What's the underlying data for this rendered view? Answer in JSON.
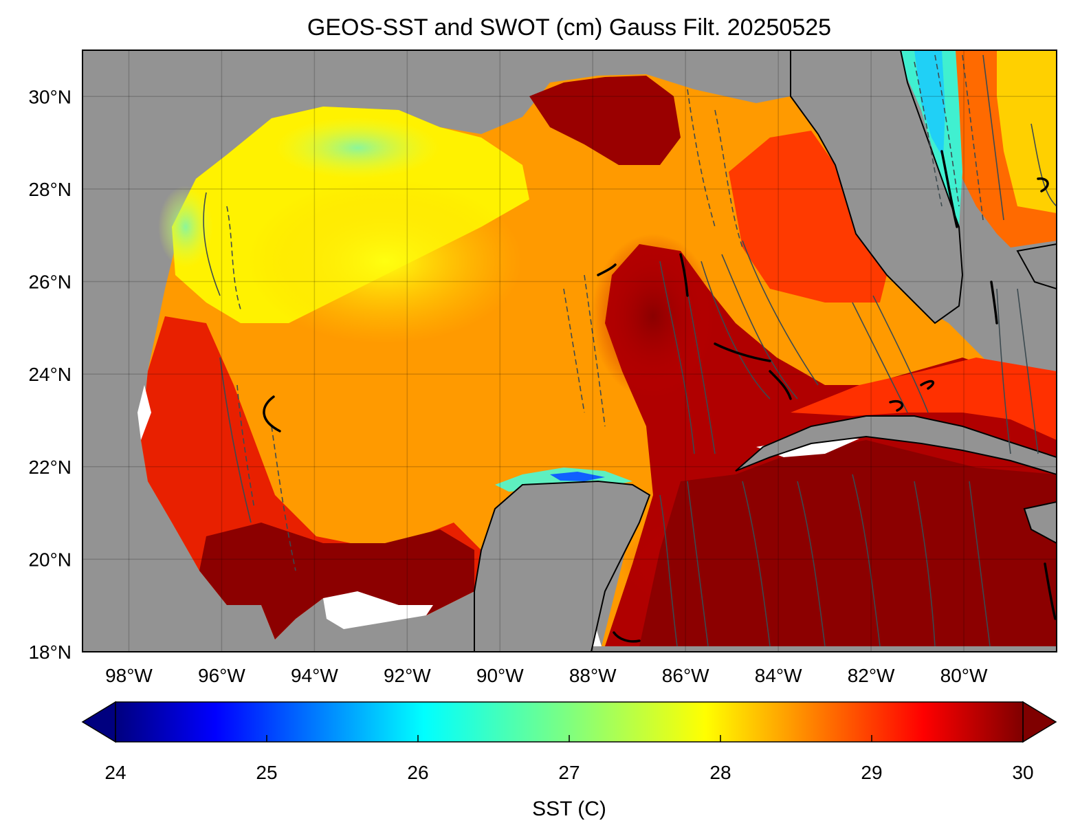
{
  "title": "GEOS-SST  and SWOT (cm) Gauss Filt. 20250525",
  "map": {
    "lon_range": [
      -99,
      -78
    ],
    "lat_range": [
      18,
      31
    ],
    "land_color": "#939393",
    "no_data_color": "#ffffff",
    "lat_ticks": [
      {
        "value": 30,
        "label": "30°N"
      },
      {
        "value": 28,
        "label": "28°N"
      },
      {
        "value": 26,
        "label": "26°N"
      },
      {
        "value": 24,
        "label": "24°N"
      },
      {
        "value": 22,
        "label": "22°N"
      },
      {
        "value": 20,
        "label": "20°N"
      },
      {
        "value": 18,
        "label": "18°N"
      }
    ],
    "lon_ticks": [
      {
        "value": -98,
        "label": "98°W"
      },
      {
        "value": -96,
        "label": "96°W"
      },
      {
        "value": -94,
        "label": "94°W"
      },
      {
        "value": -92,
        "label": "92°W"
      },
      {
        "value": -90,
        "label": "90°W"
      },
      {
        "value": -88,
        "label": "88°W"
      },
      {
        "value": -86,
        "label": "86°W"
      },
      {
        "value": -84,
        "label": "84°W"
      },
      {
        "value": -82,
        "label": "82°W"
      },
      {
        "value": -80,
        "label": "80°W"
      }
    ],
    "grid": true
  },
  "colorbar": {
    "label": "SST (C)",
    "min": 24,
    "max": 30,
    "extend": "both",
    "colormap": "jet",
    "ticks": [
      {
        "value": 24,
        "label": "24"
      },
      {
        "value": 25,
        "label": "25"
      },
      {
        "value": 26,
        "label": "26"
      },
      {
        "value": 27,
        "label": "27"
      },
      {
        "value": 28,
        "label": "28"
      },
      {
        "value": 29,
        "label": "29"
      },
      {
        "value": 30,
        "label": "30"
      }
    ],
    "under_color": "#00007f",
    "over_color": "#7f0000"
  }
}
